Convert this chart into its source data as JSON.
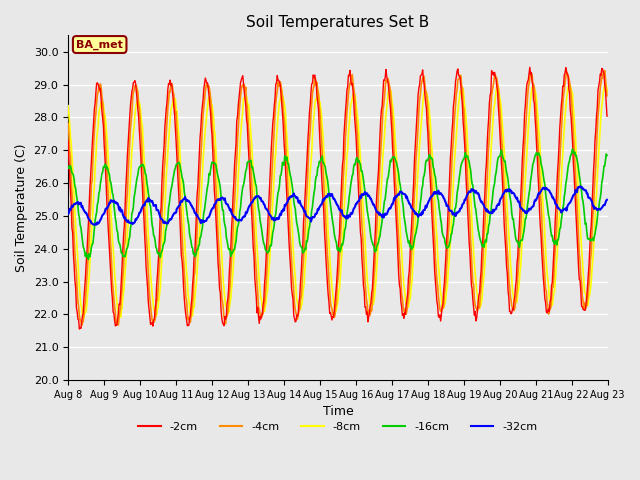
{
  "title": "Soil Temperatures Set B",
  "xlabel": "Time",
  "ylabel": "Soil Temperature (C)",
  "ylim": [
    20.0,
    30.5
  ],
  "yticks": [
    20.0,
    21.0,
    22.0,
    23.0,
    24.0,
    25.0,
    26.0,
    27.0,
    28.0,
    29.0,
    30.0
  ],
  "xtick_labels": [
    "Aug 8",
    "Aug 9",
    "Aug 10",
    "Aug 11",
    "Aug 12",
    "Aug 13",
    "Aug 14",
    "Aug 15",
    "Aug 16",
    "Aug 17",
    "Aug 18",
    "Aug 19",
    "Aug 20",
    "Aug 21",
    "Aug 22",
    "Aug 23"
  ],
  "annotation_text": "BA_met",
  "annotation_box_color": "#FFFF99",
  "annotation_text_color": "#8B0000",
  "colors": {
    "-2cm": "#FF0000",
    "-4cm": "#FF8C00",
    "-8cm": "#FFFF00",
    "-16cm": "#00CC00",
    "-32cm": "#0000FF"
  },
  "bg_color": "#E8E8E8",
  "plot_bg_color": "#E8E8E8",
  "grid_color": "#FFFFFF",
  "n_days": 15,
  "pts_per_day": 48,
  "mean_2cm": 25.3,
  "amp_2cm": 3.7,
  "mean_4cm": 25.3,
  "amp_4cm": 3.6,
  "mean_8cm": 25.2,
  "amp_8cm": 3.3,
  "mean_16cm": 25.1,
  "amp_16cm": 1.4,
  "mean_32cm": 25.05,
  "amp_32cm": 0.35,
  "trend": 0.5
}
